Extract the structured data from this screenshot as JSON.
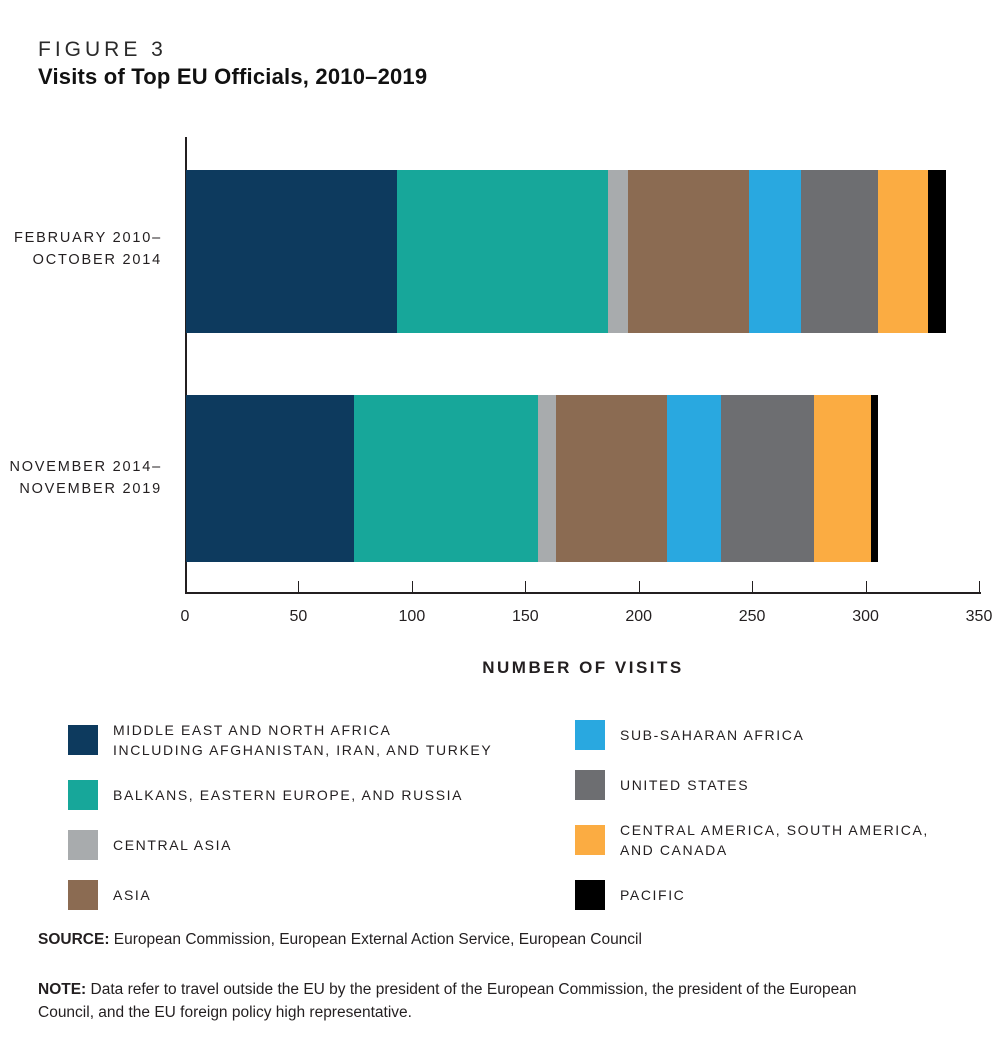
{
  "figure": {
    "label": "FIGURE 3",
    "title": "Visits of Top EU Officials, 2010–2019"
  },
  "chart_data": {
    "type": "bar",
    "orientation": "horizontal",
    "stacked": true,
    "title": "Visits of Top EU Officials, 2010–2019",
    "xlabel": "NUMBER OF VISITS",
    "xlim": [
      0,
      350
    ],
    "xticks": [
      0,
      50,
      100,
      150,
      200,
      250,
      300,
      350
    ],
    "grid": false,
    "legend_position": "bottom",
    "categories": [
      {
        "lines": [
          "FEBRUARY 2010–",
          "OCTOBER 2014"
        ]
      },
      {
        "lines": [
          "NOVEMBER 2014–",
          "NOVEMBER 2019"
        ]
      }
    ],
    "series": [
      {
        "name": "MIDDLE EAST AND NORTH AFRICA INCLUDING AFGHANISTAN, IRAN, AND TURKEY",
        "color": "#0d3a5e",
        "values": [
          93,
          74
        ]
      },
      {
        "name": "BALKANS, EASTERN EUROPE, AND RUSSIA",
        "color": "#17a79a",
        "values": [
          93,
          81
        ]
      },
      {
        "name": "CENTRAL ASIA",
        "color": "#a8abad",
        "values": [
          9,
          8
        ]
      },
      {
        "name": "ASIA",
        "color": "#8b6b52",
        "values": [
          53,
          49
        ]
      },
      {
        "name": "SUB-SAHARAN AFRICA",
        "color": "#29a8e0",
        "values": [
          23,
          24
        ]
      },
      {
        "name": "UNITED STATES",
        "color": "#6d6e71",
        "values": [
          34,
          41
        ]
      },
      {
        "name": "CENTRAL AMERICA, SOUTH AMERICA, AND CANADA",
        "color": "#fbac42",
        "values": [
          22,
          25
        ]
      },
      {
        "name": "PACIFIC",
        "color": "#000000",
        "values": [
          8,
          3
        ]
      }
    ],
    "totals": [
      335,
      305
    ]
  },
  "legend": {
    "left": [
      {
        "color": "#0d3a5e",
        "lines": [
          "MIDDLE EAST AND NORTH AFRICA",
          "INCLUDING AFGHANISTAN, IRAN, AND TURKEY"
        ]
      },
      {
        "color": "#17a79a",
        "lines": [
          "BALKANS, EASTERN EUROPE, AND RUSSIA"
        ]
      },
      {
        "color": "#a8abad",
        "lines": [
          "CENTRAL ASIA"
        ]
      },
      {
        "color": "#8b6b52",
        "lines": [
          "ASIA"
        ]
      }
    ],
    "right": [
      {
        "color": "#29a8e0",
        "lines": [
          "SUB-SAHARAN AFRICA"
        ]
      },
      {
        "color": "#6d6e71",
        "lines": [
          "UNITED STATES"
        ]
      },
      {
        "color": "#fbac42",
        "lines": [
          "CENTRAL AMERICA, SOUTH AMERICA,",
          "AND CANADA"
        ]
      },
      {
        "color": "#000000",
        "lines": [
          "PACIFIC"
        ]
      }
    ]
  },
  "source": {
    "prefix": "SOURCE:",
    "text": " European Commission, European External Action Service, European Council"
  },
  "note": {
    "prefix": "NOTE:",
    "text": " Data refer to travel outside the EU by the president of the European Commission, the president of the European Council, and the EU foreign policy high representative."
  }
}
